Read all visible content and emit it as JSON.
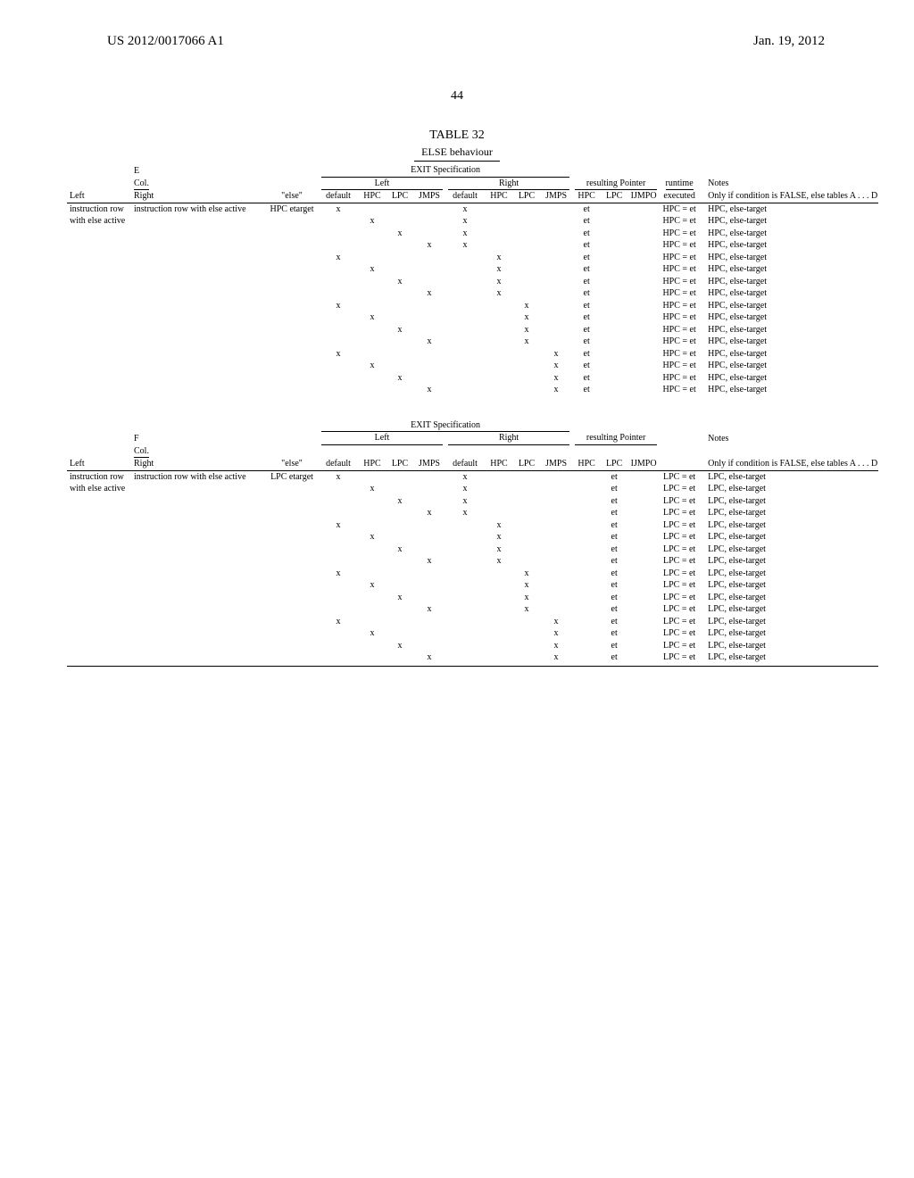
{
  "header": {
    "publication_number": "US 2012/0017066 A1",
    "publication_date": "Jan. 19, 2012",
    "page_number": "44",
    "table_label": "TABLE 32",
    "else_behaviour": "ELSE behaviour"
  },
  "section_labels": {
    "exit_spec": "EXIT Specification",
    "left": "Left",
    "right": "Right",
    "resulting_pointer": "resulting Pointer",
    "runtime": "runtime",
    "notes": "Notes",
    "cond": "Col.",
    "default": "default",
    "hpc": "HPC",
    "lpc": "LPC",
    "jmps": "JMPS",
    "ijmpo": "IJMPO",
    "executed": "executed"
  },
  "section_E": {
    "section_letter": "E",
    "row_label_left": "instruction row with else active",
    "row_label_right": "with else active",
    "left_label": "Left",
    "right_label": "Right",
    "else_value": "\"else\"",
    "etarget": "HPC etarget",
    "only_if": "Only if condition is FALSE, else tables A . . . D",
    "rows": [
      {
        "d": "x",
        "h": "",
        "l": "",
        "j": "",
        "dd": "x",
        "hh": "",
        "ll": "",
        "jj": "",
        "rh": "et",
        "rl": "",
        "ri": "",
        "rt": "HPC = et",
        "note": "HPC, else-target"
      },
      {
        "d": "",
        "h": "x",
        "l": "",
        "j": "",
        "dd": "x",
        "hh": "",
        "ll": "",
        "jj": "",
        "rh": "et",
        "rl": "",
        "ri": "",
        "rt": "HPC = et",
        "note": "HPC, else-target"
      },
      {
        "d": "",
        "h": "",
        "l": "x",
        "j": "",
        "dd": "x",
        "hh": "",
        "ll": "",
        "jj": "",
        "rh": "et",
        "rl": "",
        "ri": "",
        "rt": "HPC = et",
        "note": "HPC, else-target"
      },
      {
        "d": "",
        "h": "",
        "l": "",
        "j": "x",
        "dd": "x",
        "hh": "",
        "ll": "",
        "jj": "",
        "rh": "et",
        "rl": "",
        "ri": "",
        "rt": "HPC = et",
        "note": "HPC, else-target"
      },
      {
        "d": "x",
        "h": "",
        "l": "",
        "j": "",
        "dd": "",
        "hh": "x",
        "ll": "",
        "jj": "",
        "rh": "et",
        "rl": "",
        "ri": "",
        "rt": "HPC = et",
        "note": "HPC, else-target"
      },
      {
        "d": "",
        "h": "x",
        "l": "",
        "j": "",
        "dd": "",
        "hh": "x",
        "ll": "",
        "jj": "",
        "rh": "et",
        "rl": "",
        "ri": "",
        "rt": "HPC = et",
        "note": "HPC, else-target"
      },
      {
        "d": "",
        "h": "",
        "l": "x",
        "j": "",
        "dd": "",
        "hh": "x",
        "ll": "",
        "jj": "",
        "rh": "et",
        "rl": "",
        "ri": "",
        "rt": "HPC = et",
        "note": "HPC, else-target"
      },
      {
        "d": "",
        "h": "",
        "l": "",
        "j": "x",
        "dd": "",
        "hh": "x",
        "ll": "",
        "jj": "",
        "rh": "et",
        "rl": "",
        "ri": "",
        "rt": "HPC = et",
        "note": "HPC, else-target"
      },
      {
        "d": "x",
        "h": "",
        "l": "",
        "j": "",
        "dd": "",
        "hh": "",
        "ll": "x",
        "jj": "",
        "rh": "et",
        "rl": "",
        "ri": "",
        "rt": "HPC = et",
        "note": "HPC, else-target"
      },
      {
        "d": "",
        "h": "x",
        "l": "",
        "j": "",
        "dd": "",
        "hh": "",
        "ll": "x",
        "jj": "",
        "rh": "et",
        "rl": "",
        "ri": "",
        "rt": "HPC = et",
        "note": "HPC, else-target"
      },
      {
        "d": "",
        "h": "",
        "l": "x",
        "j": "",
        "dd": "",
        "hh": "",
        "ll": "x",
        "jj": "",
        "rh": "et",
        "rl": "",
        "ri": "",
        "rt": "HPC = et",
        "note": "HPC, else-target"
      },
      {
        "d": "",
        "h": "",
        "l": "",
        "j": "x",
        "dd": "",
        "hh": "",
        "ll": "x",
        "jj": "",
        "rh": "et",
        "rl": "",
        "ri": "",
        "rt": "HPC = et",
        "note": "HPC, else-target"
      },
      {
        "d": "x",
        "h": "",
        "l": "",
        "j": "",
        "dd": "",
        "hh": "",
        "ll": "",
        "jj": "x",
        "rh": "et",
        "rl": "",
        "ri": "",
        "rt": "HPC = et",
        "note": "HPC, else-target"
      },
      {
        "d": "",
        "h": "x",
        "l": "",
        "j": "",
        "dd": "",
        "hh": "",
        "ll": "",
        "jj": "x",
        "rh": "et",
        "rl": "",
        "ri": "",
        "rt": "HPC = et",
        "note": "HPC, else-target"
      },
      {
        "d": "",
        "h": "",
        "l": "x",
        "j": "",
        "dd": "",
        "hh": "",
        "ll": "",
        "jj": "x",
        "rh": "et",
        "rl": "",
        "ri": "",
        "rt": "HPC = et",
        "note": "HPC, else-target"
      },
      {
        "d": "",
        "h": "",
        "l": "",
        "j": "x",
        "dd": "",
        "hh": "",
        "ll": "",
        "jj": "x",
        "rh": "et",
        "rl": "",
        "ri": "",
        "rt": "HPC = et",
        "note": "HPC, else-target"
      }
    ]
  },
  "section_F": {
    "section_letter": "F",
    "row_label_left": "instruction row with else active",
    "row_label_right": "with else active",
    "left_label": "Left",
    "right_label": "Right",
    "else_value": "\"else\"",
    "etarget": "LPC etarget",
    "only_if": "Only if condition is FALSE, else tables A . . . D",
    "rows": [
      {
        "d": "x",
        "h": "",
        "l": "",
        "j": "",
        "dd": "x",
        "hh": "",
        "ll": "",
        "jj": "",
        "rh": "",
        "rl": "et",
        "ri": "",
        "rt": "LPC = et",
        "note": "LPC, else-target"
      },
      {
        "d": "",
        "h": "x",
        "l": "",
        "j": "",
        "dd": "x",
        "hh": "",
        "ll": "",
        "jj": "",
        "rh": "",
        "rl": "et",
        "ri": "",
        "rt": "LPC = et",
        "note": "LPC, else-target"
      },
      {
        "d": "",
        "h": "",
        "l": "x",
        "j": "",
        "dd": "x",
        "hh": "",
        "ll": "",
        "jj": "",
        "rh": "",
        "rl": "et",
        "ri": "",
        "rt": "LPC = et",
        "note": "LPC, else-target"
      },
      {
        "d": "",
        "h": "",
        "l": "",
        "j": "x",
        "dd": "x",
        "hh": "",
        "ll": "",
        "jj": "",
        "rh": "",
        "rl": "et",
        "ri": "",
        "rt": "LPC = et",
        "note": "LPC, else-target"
      },
      {
        "d": "x",
        "h": "",
        "l": "",
        "j": "",
        "dd": "",
        "hh": "x",
        "ll": "",
        "jj": "",
        "rh": "",
        "rl": "et",
        "ri": "",
        "rt": "LPC = et",
        "note": "LPC, else-target"
      },
      {
        "d": "",
        "h": "x",
        "l": "",
        "j": "",
        "dd": "",
        "hh": "x",
        "ll": "",
        "jj": "",
        "rh": "",
        "rl": "et",
        "ri": "",
        "rt": "LPC = et",
        "note": "LPC, else-target"
      },
      {
        "d": "",
        "h": "",
        "l": "x",
        "j": "",
        "dd": "",
        "hh": "x",
        "ll": "",
        "jj": "",
        "rh": "",
        "rl": "et",
        "ri": "",
        "rt": "LPC = et",
        "note": "LPC, else-target"
      },
      {
        "d": "",
        "h": "",
        "l": "",
        "j": "x",
        "dd": "",
        "hh": "x",
        "ll": "",
        "jj": "",
        "rh": "",
        "rl": "et",
        "ri": "",
        "rt": "LPC = et",
        "note": "LPC, else-target"
      },
      {
        "d": "x",
        "h": "",
        "l": "",
        "j": "",
        "dd": "",
        "hh": "",
        "ll": "x",
        "jj": "",
        "rh": "",
        "rl": "et",
        "ri": "",
        "rt": "LPC = et",
        "note": "LPC, else-target"
      },
      {
        "d": "",
        "h": "x",
        "l": "",
        "j": "",
        "dd": "",
        "hh": "",
        "ll": "x",
        "jj": "",
        "rh": "",
        "rl": "et",
        "ri": "",
        "rt": "LPC = et",
        "note": "LPC, else-target"
      },
      {
        "d": "",
        "h": "",
        "l": "x",
        "j": "",
        "dd": "",
        "hh": "",
        "ll": "x",
        "jj": "",
        "rh": "",
        "rl": "et",
        "ri": "",
        "rt": "LPC = et",
        "note": "LPC, else-target"
      },
      {
        "d": "",
        "h": "",
        "l": "",
        "j": "x",
        "dd": "",
        "hh": "",
        "ll": "x",
        "jj": "",
        "rh": "",
        "rl": "et",
        "ri": "",
        "rt": "LPC = et",
        "note": "LPC, else-target"
      },
      {
        "d": "x",
        "h": "",
        "l": "",
        "j": "",
        "dd": "",
        "hh": "",
        "ll": "",
        "jj": "x",
        "rh": "",
        "rl": "et",
        "ri": "",
        "rt": "LPC = et",
        "note": "LPC, else-target"
      },
      {
        "d": "",
        "h": "x",
        "l": "",
        "j": "",
        "dd": "",
        "hh": "",
        "ll": "",
        "jj": "x",
        "rh": "",
        "rl": "et",
        "ri": "",
        "rt": "LPC = et",
        "note": "LPC, else-target"
      },
      {
        "d": "",
        "h": "",
        "l": "x",
        "j": "",
        "dd": "",
        "hh": "",
        "ll": "",
        "jj": "x",
        "rh": "",
        "rl": "et",
        "ri": "",
        "rt": "LPC = et",
        "note": "LPC, else-target"
      },
      {
        "d": "",
        "h": "",
        "l": "",
        "j": "x",
        "dd": "",
        "hh": "",
        "ll": "",
        "jj": "x",
        "rh": "",
        "rl": "et",
        "ri": "",
        "rt": "LPC = et",
        "note": "LPC, else-target"
      }
    ]
  },
  "styling": {
    "font_family": "Times New Roman",
    "body_fontsize_pt": 10,
    "header_fontsize_pt": 15,
    "caption_fontsize_pt": 14,
    "text_color": "#000000",
    "background_color": "#ffffff",
    "rule_color": "#000000"
  }
}
